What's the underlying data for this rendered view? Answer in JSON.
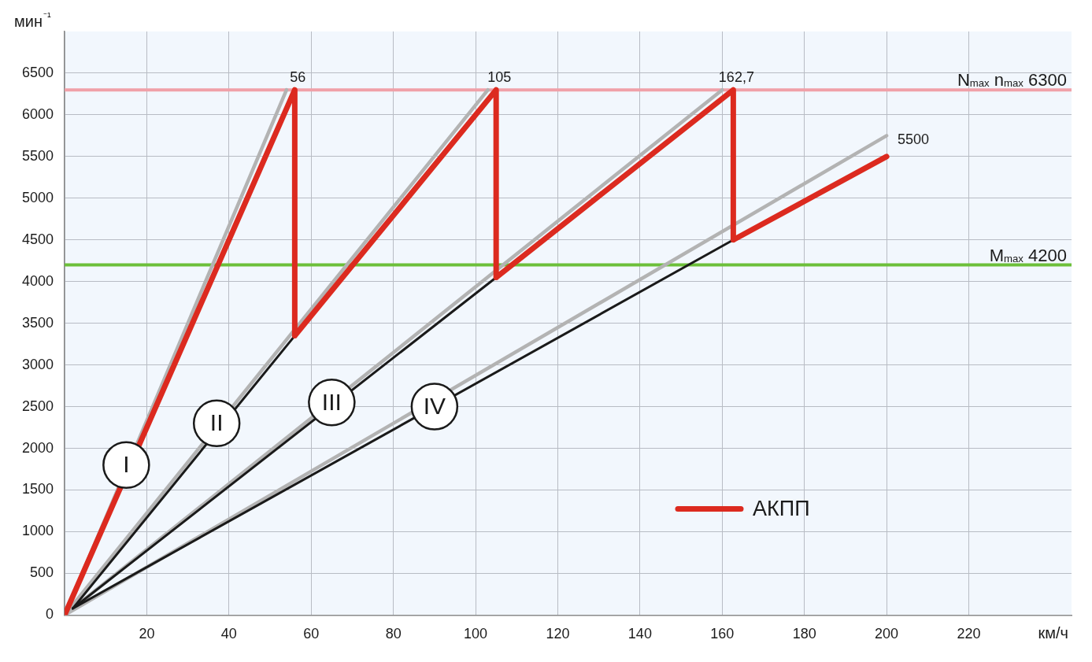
{
  "chart_data": {
    "type": "line",
    "xlabel": "км/ч",
    "ylabel": "мин⁻¹",
    "xlim": [
      0,
      245
    ],
    "xticks": [
      {
        "value": 0,
        "label": null
      },
      20,
      40,
      60,
      80,
      100,
      120,
      140,
      160,
      180,
      200,
      220
    ],
    "ylim": [
      0,
      7000
    ],
    "yticks": [
      0,
      500,
      1000,
      1500,
      2000,
      2500,
      3000,
      3500,
      4000,
      4500,
      5000,
      5500,
      6000,
      6500
    ],
    "grid": true,
    "legend": "bottom right",
    "series": [
      {
        "color": "#b3b3b3",
        "x": [
          0,
          54
        ],
        "values": [
          0,
          6300
        ]
      },
      {
        "color": "#b3b3b3",
        "x": [
          0,
          103
        ],
        "values": [
          0,
          6300
        ]
      },
      {
        "color": "#b3b3b3",
        "x": [
          0,
          160
        ],
        "values": [
          0,
          6300
        ]
      },
      {
        "color": "#b3b3b3",
        "x": [
          0,
          200
        ],
        "values": [
          0,
          5750
        ]
      },
      {
        "color": "#1a1a1a",
        "x": [
          2,
          56
        ],
        "values": [
          80,
          3350
        ]
      },
      {
        "color": "#1a1a1a",
        "x": [
          2,
          105
        ],
        "values": [
          80,
          4050
        ]
      },
      {
        "color": "#1a1a1a",
        "x": [
          2,
          162.7
        ],
        "values": [
          80,
          4500
        ]
      },
      {
        "name": "АКПП",
        "color": "#dc2a1f",
        "x": [
          0,
          56,
          56,
          105,
          105,
          162.7,
          162.7,
          200
        ],
        "values": [
          0,
          6300,
          3350,
          6300,
          4050,
          6300,
          4500,
          5500
        ],
        "value_labels": [
          null,
          null,
          null,
          null,
          null,
          null,
          null,
          "5500"
        ]
      }
    ],
    "ref_lines": [
      {
        "axis": "y",
        "value": 6300,
        "label": "N$_{max}$ n$_{max}$ 6300",
        "color": "#f0a0a8"
      },
      {
        "axis": "y",
        "value": 4200,
        "label": "M$_{max}$ 4200",
        "color": "#6cbf3a"
      }
    ],
    "annotations": [
      {
        "text": "56",
        "x": 56,
        "y": 6300
      },
      {
        "text": "105",
        "x": 105,
        "y": 6300
      },
      {
        "text": "162,7",
        "x": 162.7,
        "y": 6300
      },
      {
        "text": "I",
        "x": 15,
        "y": 1800
      },
      {
        "text": "II",
        "x": 37,
        "y": 2300
      },
      {
        "text": "III",
        "x": 65,
        "y": 2550
      },
      {
        "text": "IV",
        "x": 90,
        "y": 2500
      }
    ]
  }
}
